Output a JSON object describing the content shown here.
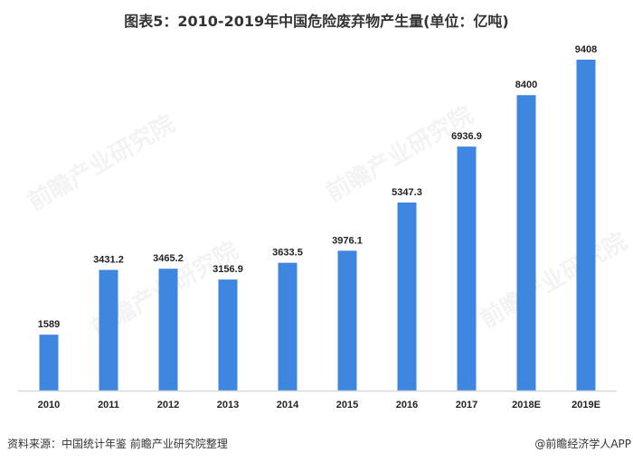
{
  "chart_data": {
    "type": "bar",
    "title": "图表5：2010-2019年中国危险废弃物产生量(单位：亿吨)",
    "categories": [
      "2010",
      "2011",
      "2012",
      "2013",
      "2014",
      "2015",
      "2016",
      "2017",
      "2018E",
      "2019E"
    ],
    "values": [
      1589,
      3431.2,
      3465.2,
      3156.9,
      3633.5,
      3976.1,
      5347.3,
      6936.9,
      8400,
      9408
    ],
    "data_labels": [
      "1589",
      "3431.2",
      "3465.2",
      "3156.9",
      "3633.5",
      "3976.1",
      "5347.3",
      "6936.9",
      "8400",
      "9408"
    ],
    "xlabel": "",
    "ylabel": "",
    "ylim": [
      0,
      9408
    ],
    "grid": false,
    "bar_color": "#3f86e0"
  },
  "source": "资料来源：中国统计年鉴 前瞻产业研究院整理",
  "credit": "@前瞻经济学人APP",
  "watermark": "前瞻产业研究院"
}
